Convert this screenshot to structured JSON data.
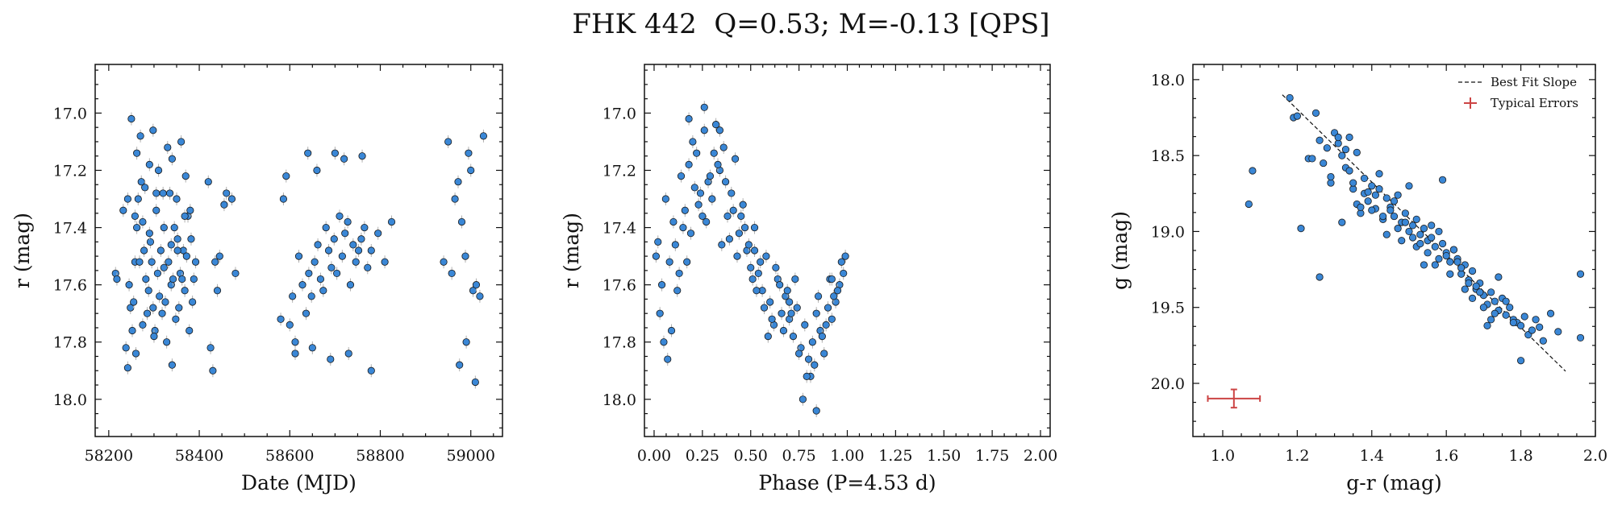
{
  "figure_title": "FHK 442  Q=0.53; M=-0.13 [QPS]",
  "colors": {
    "point": "#3a87d6",
    "edge": "#1a1a1a",
    "errbar": "#b0b0b0",
    "fit": "#111111",
    "typical": "#cc4444"
  },
  "chart_data": [
    {
      "type": "scatter",
      "xlabel": "Date (MJD)",
      "ylabel": "r (mag)",
      "xlim": [
        58170,
        59070
      ],
      "ylim": [
        18.13,
        16.83
      ],
      "y_inverted": true,
      "xticks": [
        58200,
        58400,
        58600,
        58800,
        59000
      ],
      "xtick_labels": [
        "58200",
        "58400",
        "58600",
        "58800",
        "59000"
      ],
      "yticks": [
        17.0,
        17.2,
        17.4,
        17.6,
        17.8,
        18.0
      ],
      "ytick_labels": [
        "17.0",
        "17.2",
        "17.4",
        "17.6",
        "17.8",
        "18.0"
      ],
      "series": [
        {
          "x": [
            58215,
            58218,
            58232,
            58238,
            58242,
            58245,
            58248,
            58252,
            58255,
            58258,
            58262,
            58265,
            58268,
            58272,
            58275,
            58278,
            58282,
            58285,
            58288,
            58292,
            58295,
            58298,
            58302,
            58305,
            58308,
            58312,
            58315,
            58318,
            58322,
            58325,
            58328,
            58332,
            58335,
            58338,
            58342,
            58345,
            58348,
            58352,
            58355,
            58358,
            58362,
            58365,
            58368,
            58372,
            58375,
            58378,
            58382,
            58385,
            58388,
            58392,
            58420,
            58425,
            58430,
            58435,
            58440,
            58445,
            58455,
            58460,
            58472,
            58480,
            58250,
            58262,
            58270,
            58280,
            58290,
            58298,
            58310,
            58320,
            58330,
            58340,
            58350,
            58360,
            58370,
            58242,
            58258,
            58275,
            58290,
            58305,
            58322,
            58338,
            58352,
            58368,
            58380,
            58260,
            58300,
            58340,
            58580,
            58586,
            58592,
            58600,
            58606,
            58612,
            58620,
            58628,
            58636,
            58642,
            58648,
            58655,
            58662,
            58668,
            58674,
            58680,
            58686,
            58692,
            58698,
            58704,
            58710,
            58716,
            58722,
            58728,
            58734,
            58740,
            58746,
            58752,
            58758,
            58765,
            58772,
            58780,
            58795,
            58810,
            58825,
            58640,
            58660,
            58700,
            58720,
            58760,
            58612,
            58650,
            58690,
            58730,
            58780,
            58940,
            58950,
            58958,
            58965,
            58972,
            58980,
            58988,
            58995,
            59000,
            59005,
            59012,
            59020,
            59028,
            58990,
            58975,
            59010
          ],
          "y": [
            17.56,
            17.58,
            17.34,
            17.82,
            17.89,
            17.6,
            17.68,
            17.76,
            17.66,
            17.52,
            17.4,
            17.3,
            17.52,
            17.24,
            17.74,
            17.48,
            17.58,
            17.7,
            17.62,
            17.45,
            17.52,
            17.68,
            17.76,
            17.28,
            17.56,
            17.64,
            17.48,
            17.7,
            17.54,
            17.66,
            17.8,
            17.52,
            17.28,
            17.6,
            17.58,
            17.4,
            17.72,
            17.44,
            17.68,
            17.56,
            17.58,
            17.48,
            17.62,
            17.5,
            17.36,
            17.76,
            17.44,
            17.66,
            17.58,
            17.52,
            17.24,
            17.82,
            17.9,
            17.52,
            17.62,
            17.5,
            17.32,
            17.28,
            17.3,
            17.56,
            17.02,
            17.14,
            17.08,
            17.26,
            17.18,
            17.06,
            17.2,
            17.28,
            17.12,
            17.16,
            17.3,
            17.1,
            17.22,
            17.3,
            17.36,
            17.38,
            17.42,
            17.34,
            17.4,
            17.46,
            17.48,
            17.36,
            17.34,
            17.84,
            17.78,
            17.88,
            17.72,
            17.3,
            17.22,
            17.74,
            17.64,
            17.84,
            17.5,
            17.6,
            17.7,
            17.56,
            17.64,
            17.52,
            17.46,
            17.58,
            17.62,
            17.4,
            17.48,
            17.54,
            17.44,
            17.56,
            17.36,
            17.5,
            17.42,
            17.38,
            17.6,
            17.46,
            17.52,
            17.48,
            17.44,
            17.4,
            17.54,
            17.48,
            17.42,
            17.52,
            17.38,
            17.14,
            17.2,
            17.14,
            17.16,
            17.15,
            17.8,
            17.82,
            17.86,
            17.84,
            17.9,
            17.52,
            17.1,
            17.56,
            17.3,
            17.24,
            17.38,
            17.5,
            17.14,
            17.2,
            17.62,
            17.6,
            17.64,
            17.08,
            17.8,
            17.88,
            17.94
          ]
        }
      ]
    },
    {
      "type": "scatter",
      "xlabel": "Phase (P=4.53 d)",
      "ylabel": "r (mag)",
      "xlim": [
        -0.05,
        2.05
      ],
      "ylim": [
        18.13,
        16.83
      ],
      "y_inverted": true,
      "xticks": [
        0.0,
        0.25,
        0.5,
        0.75,
        1.0,
        1.25,
        1.5,
        1.75,
        2.0
      ],
      "xtick_labels": [
        "0.00",
        "0.25",
        "0.50",
        "0.75",
        "1.00",
        "1.25",
        "1.50",
        "1.75",
        "2.00"
      ],
      "yticks": [
        17.0,
        17.2,
        17.4,
        17.6,
        17.8,
        18.0
      ],
      "ytick_labels": [
        "17.0",
        "17.2",
        "17.4",
        "17.6",
        "17.8",
        "18.0"
      ],
      "series": [
        {
          "x": [
            0.02,
            0.04,
            0.06,
            0.08,
            0.1,
            0.12,
            0.14,
            0.16,
            0.18,
            0.2,
            0.22,
            0.24,
            0.26,
            0.28,
            0.3,
            0.32,
            0.34,
            0.36,
            0.38,
            0.4,
            0.42,
            0.44,
            0.46,
            0.48,
            0.5,
            0.52,
            0.54,
            0.56,
            0.58,
            0.6,
            0.62,
            0.64,
            0.66,
            0.68,
            0.7,
            0.72,
            0.74,
            0.76,
            0.78,
            0.8,
            0.82,
            0.84,
            0.86,
            0.88,
            0.9,
            0.92,
            0.94,
            0.96,
            0.98,
            0.03,
            0.09,
            0.15,
            0.21,
            0.27,
            0.33,
            0.39,
            0.45,
            0.51,
            0.57,
            0.63,
            0.69,
            0.75,
            0.81,
            0.87,
            0.93,
            0.99,
            0.05,
            0.11,
            0.17,
            0.23,
            0.29,
            0.35,
            0.41,
            0.47,
            0.53,
            0.59,
            0.65,
            0.71,
            0.77,
            0.83,
            0.89,
            0.95,
            0.07,
            0.13,
            0.19,
            0.25,
            0.31,
            0.37,
            0.43,
            0.49,
            0.55,
            0.61,
            0.67,
            0.73,
            0.79,
            0.85,
            0.91,
            0.97,
            0.01,
            0.18,
            0.26,
            0.34,
            0.52,
            0.7,
            0.84,
            0.92
          ],
          "y": [
            17.45,
            17.6,
            17.3,
            17.52,
            17.38,
            17.62,
            17.22,
            17.34,
            17.18,
            17.1,
            17.14,
            17.28,
            17.06,
            17.24,
            17.3,
            17.04,
            17.2,
            17.12,
            17.36,
            17.28,
            17.16,
            17.42,
            17.32,
            17.48,
            17.54,
            17.4,
            17.56,
            17.62,
            17.5,
            17.66,
            17.74,
            17.58,
            17.7,
            17.64,
            17.72,
            17.78,
            17.68,
            17.82,
            17.74,
            17.86,
            17.8,
            17.7,
            17.76,
            17.84,
            17.68,
            17.72,
            17.66,
            17.6,
            17.56,
            17.7,
            17.76,
            17.4,
            17.26,
            17.38,
            17.18,
            17.44,
            17.36,
            17.58,
            17.68,
            17.54,
            17.62,
            17.84,
            17.92,
            17.78,
            17.64,
            17.5,
            17.8,
            17.46,
            17.52,
            17.32,
            17.22,
            17.46,
            17.34,
            17.4,
            17.62,
            17.78,
            17.6,
            17.7,
            18.0,
            17.88,
            17.74,
            17.62,
            17.86,
            17.56,
            17.42,
            17.36,
            17.14,
            17.24,
            17.5,
            17.46,
            17.52,
            17.72,
            17.76,
            17.58,
            17.92,
            17.64,
            17.58,
            17.52,
            17.5,
            17.02,
            16.98,
            17.06,
            17.48,
            17.66,
            18.04,
            17.58
          ]
        }
      ]
    },
    {
      "type": "scatter",
      "xlabel": "g-r (mag)",
      "ylabel": "g (mag)",
      "xlim": [
        0.92,
        2.0
      ],
      "ylim": [
        20.35,
        17.9
      ],
      "y_inverted": true,
      "xticks": [
        1.0,
        1.2,
        1.4,
        1.6,
        1.8,
        2.0
      ],
      "xtick_labels": [
        "1.0",
        "1.2",
        "1.4",
        "1.6",
        "1.8",
        "2.0"
      ],
      "yticks": [
        18.0,
        18.5,
        19.0,
        19.5,
        20.0
      ],
      "ytick_labels": [
        "18.0",
        "18.5",
        "19.0",
        "19.5",
        "20.0"
      ],
      "legend": {
        "placement": "top-right",
        "entries": [
          "Best Fit Slope",
          "Typical Errors"
        ]
      },
      "fit_line": {
        "x": [
          1.16,
          1.92
        ],
        "y": [
          18.1,
          19.92
        ]
      },
      "typical_error": {
        "x": 1.03,
        "y": 20.1,
        "xerr": 0.07,
        "yerr": 0.06
      },
      "series": [
        {
          "x": [
            1.07,
            1.08,
            1.18,
            1.19,
            1.21,
            1.23,
            1.25,
            1.26,
            1.27,
            1.28,
            1.29,
            1.3,
            1.31,
            1.32,
            1.33,
            1.34,
            1.35,
            1.36,
            1.37,
            1.38,
            1.39,
            1.4,
            1.41,
            1.42,
            1.43,
            1.44,
            1.45,
            1.46,
            1.47,
            1.48,
            1.49,
            1.5,
            1.51,
            1.52,
            1.53,
            1.54,
            1.55,
            1.56,
            1.57,
            1.58,
            1.59,
            1.6,
            1.61,
            1.62,
            1.63,
            1.64,
            1.65,
            1.66,
            1.67,
            1.68,
            1.69,
            1.7,
            1.71,
            1.72,
            1.73,
            1.74,
            1.75,
            1.76,
            1.77,
            1.78,
            1.79,
            1.8,
            1.81,
            1.82,
            1.83,
            1.84,
            1.85,
            1.86,
            1.88,
            1.9,
            1.96,
            1.96,
            1.2,
            1.26,
            1.34,
            1.38,
            1.42,
            1.46,
            1.5,
            1.54,
            1.58,
            1.62,
            1.66,
            1.7,
            1.74,
            1.78,
            1.32,
            1.36,
            1.4,
            1.44,
            1.48,
            1.52,
            1.56,
            1.6,
            1.64,
            1.68,
            1.72,
            1.76,
            1.8,
            1.35,
            1.39,
            1.43,
            1.47,
            1.51,
            1.55,
            1.59,
            1.63,
            1.67,
            1.71,
            1.41,
            1.45,
            1.49,
            1.53,
            1.57,
            1.61,
            1.65,
            1.69,
            1.73,
            1.37,
            1.29,
            1.31,
            1.33,
            1.24
          ],
          "y": [
            18.82,
            18.6,
            18.12,
            18.25,
            18.98,
            18.52,
            18.22,
            18.4,
            18.55,
            18.45,
            18.68,
            18.35,
            18.42,
            18.5,
            18.58,
            18.6,
            18.72,
            18.48,
            18.88,
            18.75,
            18.8,
            18.7,
            18.85,
            18.62,
            18.92,
            18.78,
            18.84,
            18.9,
            18.76,
            18.94,
            18.88,
            19.0,
            18.96,
            18.92,
            19.02,
            18.98,
            19.06,
            19.04,
            19.1,
            19.0,
            19.08,
            19.14,
            19.2,
            19.12,
            19.18,
            19.28,
            19.22,
            19.32,
            19.26,
            19.38,
            19.34,
            19.42,
            19.48,
            19.4,
            19.46,
            19.52,
            19.44,
            19.55,
            19.5,
            19.58,
            19.6,
            19.62,
            19.56,
            19.68,
            19.65,
            19.58,
            19.63,
            19.72,
            19.54,
            19.66,
            19.7,
            19.28,
            18.24,
            19.3,
            18.38,
            18.65,
            18.72,
            18.8,
            18.7,
            19.22,
            19.18,
            19.12,
            19.34,
            19.5,
            19.3,
            19.6,
            18.94,
            18.82,
            18.86,
            19.02,
            19.06,
            19.1,
            18.96,
            19.16,
            19.24,
            19.36,
            19.58,
            19.46,
            19.85,
            18.68,
            18.74,
            18.9,
            18.98,
            19.04,
            19.14,
            18.66,
            19.2,
            19.44,
            19.62,
            18.76,
            18.86,
            18.94,
            19.08,
            19.22,
            19.28,
            19.38,
            19.4,
            19.54,
            18.84,
            18.64,
            18.38,
            18.46,
            18.52
          ]
        }
      ]
    }
  ]
}
